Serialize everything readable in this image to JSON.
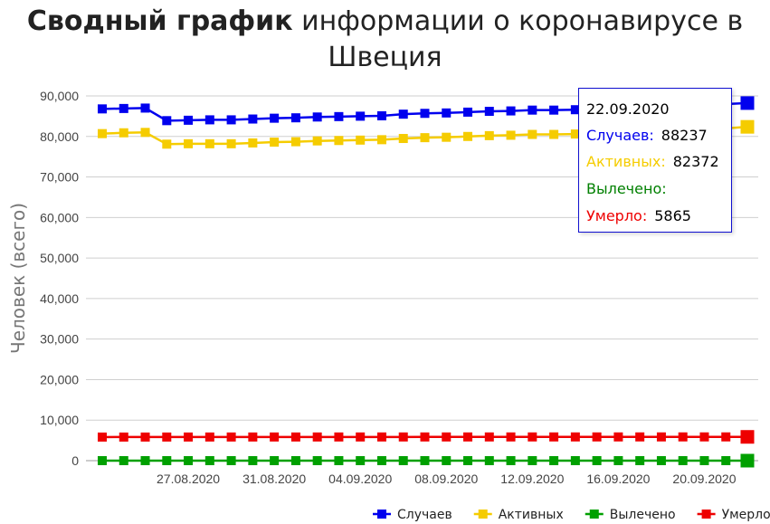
{
  "title": {
    "bold": "Сводный график",
    "rest": " информации о коронавирусе в Швеция"
  },
  "chart_data": {
    "type": "line",
    "ylabel": "Человек (всего)",
    "ylim": [
      0,
      90000
    ],
    "yticks": [
      "0",
      "10,000",
      "20,000",
      "30,000",
      "40,000",
      "50,000",
      "60,000",
      "70,000",
      "80,000",
      "90,000"
    ],
    "ytick_values": [
      0,
      10000,
      20000,
      30000,
      40000,
      50000,
      60000,
      70000,
      80000,
      90000
    ],
    "x": [
      "23.08.2020",
      "24.08.2020",
      "25.08.2020",
      "26.08.2020",
      "27.08.2020",
      "28.08.2020",
      "29.08.2020",
      "30.08.2020",
      "31.08.2020",
      "01.09.2020",
      "02.09.2020",
      "03.09.2020",
      "04.09.2020",
      "05.09.2020",
      "06.09.2020",
      "07.09.2020",
      "08.09.2020",
      "09.09.2020",
      "10.09.2020",
      "11.09.2020",
      "12.09.2020",
      "13.09.2020",
      "14.09.2020",
      "15.09.2020",
      "16.09.2020",
      "17.09.2020",
      "18.09.2020",
      "19.09.2020",
      "20.09.2020",
      "21.09.2020",
      "22.09.2020"
    ],
    "xtick_labels": [
      "27.08.2020",
      "31.08.2020",
      "04.09.2020",
      "08.09.2020",
      "12.09.2020",
      "16.09.2020",
      "20.09.2020"
    ],
    "grid": true,
    "legend_position": "bottom-right",
    "series": [
      {
        "name": "Случаев",
        "color": "#0000ee",
        "values": [
          86800,
          86900,
          87000,
          83900,
          84000,
          84100,
          84100,
          84300,
          84500,
          84600,
          84800,
          84900,
          85000,
          85100,
          85500,
          85700,
          85800,
          86000,
          86200,
          86300,
          86500,
          86500,
          86600,
          86700,
          87000,
          87200,
          87400,
          87600,
          87800,
          88000,
          88237
        ]
      },
      {
        "name": "Активных",
        "color": "#f5cc00",
        "values": [
          80700,
          80900,
          81000,
          78100,
          78200,
          78200,
          78200,
          78400,
          78600,
          78700,
          78900,
          79000,
          79100,
          79200,
          79500,
          79700,
          79800,
          80000,
          80200,
          80300,
          80500,
          80500,
          80600,
          80700,
          81000,
          81200,
          81400,
          81600,
          81800,
          82000,
          82372
        ]
      },
      {
        "name": "Вылечено",
        "color": "#00a000",
        "values": [
          0,
          0,
          0,
          0,
          0,
          0,
          0,
          0,
          0,
          0,
          0,
          0,
          0,
          0,
          0,
          0,
          0,
          0,
          0,
          0,
          0,
          0,
          0,
          0,
          0,
          0,
          0,
          0,
          0,
          0,
          0
        ]
      },
      {
        "name": "Умерло",
        "color": "#ee0000",
        "values": [
          5820,
          5821,
          5825,
          5829,
          5832,
          5835,
          5837,
          5838,
          5840,
          5841,
          5843,
          5845,
          5846,
          5847,
          5848,
          5849,
          5850,
          5851,
          5852,
          5853,
          5854,
          5855,
          5856,
          5857,
          5858,
          5859,
          5860,
          5861,
          5862,
          5863,
          5865
        ]
      }
    ]
  },
  "tooltip": {
    "date": "22.09.2020",
    "cases_label": "Случаев:",
    "cases_value": "88237",
    "active_label": "Активных:",
    "active_value": "82372",
    "recovered_label": "Вылечено:",
    "recovered_value": "",
    "deaths_label": "Умерло:",
    "deaths_value": "5865"
  }
}
